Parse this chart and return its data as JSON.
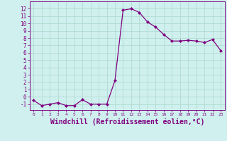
{
  "x": [
    0,
    1,
    2,
    3,
    4,
    5,
    6,
    7,
    8,
    9,
    10,
    11,
    12,
    13,
    14,
    15,
    16,
    17,
    18,
    19,
    20,
    21,
    22,
    23
  ],
  "y": [
    -0.5,
    -1.2,
    -1.0,
    -0.8,
    -1.2,
    -1.2,
    -0.4,
    -1.0,
    -1.0,
    -1.0,
    2.2,
    11.8,
    12.0,
    11.5,
    10.2,
    9.5,
    8.5,
    7.6,
    7.6,
    7.7,
    7.6,
    7.4,
    7.8,
    6.3
  ],
  "line_color": "#800080",
  "marker": "D",
  "markersize": 2.0,
  "linewidth": 0.9,
  "bg_color": "#cff0ee",
  "grid_color": "#aad8cc",
  "xlabel": "Windchill (Refroidissement éolien,°C)",
  "xlabel_fontsize": 7,
  "xlabel_color": "#800080",
  "ylabel_ticks": [
    -1,
    0,
    1,
    2,
    3,
    4,
    5,
    6,
    7,
    8,
    9,
    10,
    11,
    12
  ],
  "xlim": [
    -0.5,
    23.5
  ],
  "ylim": [
    -1.8,
    13.0
  ]
}
